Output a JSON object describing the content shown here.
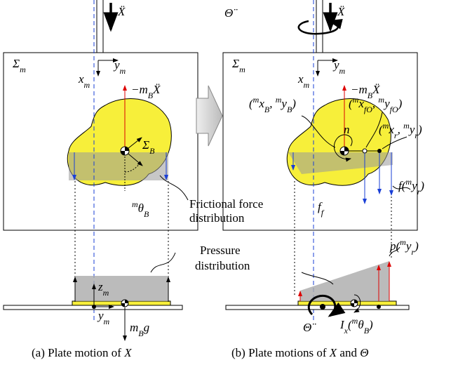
{
  "labels": [
    [
      {
        "text": "Ẍ"
      }
    ],
    [
      {
        "text": "Σ",
        "sub": "m"
      }
    ],
    [
      {
        "text": "y",
        "sub": "m"
      }
    ],
    [
      {
        "text": "x",
        "sub": "m"
      }
    ],
    [
      {
        "text": "−m",
        "sub": "B"
      },
      {
        "text": "Ẍ"
      }
    ],
    [
      {
        "text": "Σ",
        "sub": "B"
      }
    ],
    [
      {
        "sup": "m",
        "text": "θ",
        "sub": "B"
      }
    ],
    [
      {
        "text": "Θ̈"
      }
    ],
    [
      {
        "text": "Ẍ"
      }
    ],
    [
      {
        "text": "Σ",
        "sub": "m"
      }
    ],
    [
      {
        "text": "y",
        "sub": "m"
      }
    ],
    [
      {
        "text": "x",
        "sub": "m"
      }
    ],
    [
      {
        "text": "−m",
        "sub": "B"
      },
      {
        "text": "Ẍ"
      }
    ],
    [
      {
        "text": "("
      },
      {
        "sup": "m",
        "text": "x",
        "sub": "B"
      },
      {
        "text": ", "
      },
      {
        "sup": "m",
        "text": "y",
        "sub": "B"
      },
      {
        "text": ")"
      }
    ],
    [
      {
        "text": "("
      },
      {
        "sup": "m",
        "text": "x",
        "sub": "fO"
      },
      {
        "text": ", "
      },
      {
        "sup": "m",
        "text": "y",
        "sub": "fO"
      },
      {
        "text": ")"
      }
    ],
    [
      {
        "text": "("
      },
      {
        "sup": "m",
        "text": "x",
        "sub": "r"
      },
      {
        "text": ", "
      },
      {
        "sup": "m",
        "text": "y",
        "sub": "r"
      },
      {
        "text": ")"
      }
    ],
    [
      {
        "text": "n"
      }
    ],
    [
      {
        "text": "f",
        "sub": "f"
      }
    ],
    [
      {
        "text": "f("
      },
      {
        "sup": "m",
        "text": "y",
        "sub": "r"
      },
      {
        "text": ")"
      }
    ],
    [
      {
        "text": "p("
      },
      {
        "sup": "m",
        "text": "y",
        "sub": "r"
      },
      {
        "text": ")"
      }
    ],
    [
      {
        "text": "z",
        "sub": "m"
      }
    ],
    [
      {
        "text": "y",
        "sub": "m"
      }
    ],
    [
      {
        "text": "m",
        "sub": "B"
      },
      {
        "text": "g"
      }
    ],
    [
      {
        "text": "Θ̈"
      }
    ],
    [
      {
        "text": "I",
        "sub": "x"
      },
      {
        "text": "("
      },
      {
        "sup": "m",
        "text": "θ",
        "sub": "B"
      },
      {
        "text": ")"
      }
    ]
  ],
  "notes": [
    "Frictional force",
    "distribution",
    "Pressure",
    "distribution"
  ],
  "captions": [
    [
      "(a) Plate motion of ",
      "X"
    ],
    [
      "(b) Plate motions of ",
      "X",
      " and ",
      "Θ"
    ]
  ]
}
